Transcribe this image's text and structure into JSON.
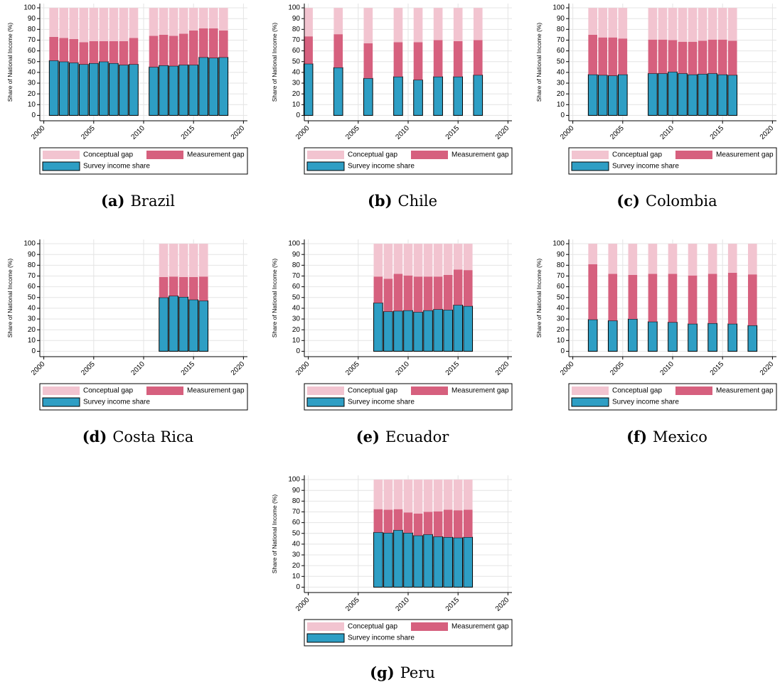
{
  "chart_data": [
    {
      "type": "bar",
      "stacked": true,
      "label": "(a)",
      "title": "Brazil",
      "ylabel": "Share of National Income (%)",
      "x": [
        2001,
        2002,
        2003,
        2004,
        2005,
        2006,
        2007,
        2008,
        2009,
        2011,
        2012,
        2013,
        2014,
        2015,
        2016,
        2017,
        2018
      ],
      "series": [
        {
          "name": "Survey income share",
          "color": "#2e9ec4",
          "edgecolor": "#000000",
          "values": [
            51,
            50,
            49,
            47.5,
            48.5,
            50,
            48.5,
            47,
            47.5,
            45,
            46.5,
            46,
            47,
            47,
            54,
            53.5,
            54
          ]
        },
        {
          "name": "Measurement gap",
          "color": "#d6607e",
          "values": [
            22,
            22,
            22,
            20.5,
            20.5,
            19,
            20.5,
            22,
            24.5,
            29,
            28.5,
            28,
            29,
            32,
            27,
            27.5,
            25
          ]
        },
        {
          "name": "Conceptual gap",
          "color": "#f2c4d0",
          "values": [
            27,
            28,
            29,
            32,
            31,
            31,
            31,
            31,
            28,
            26,
            25,
            26,
            24,
            21,
            19,
            19,
            21
          ]
        }
      ],
      "xlim": [
        1999.6,
        2020.4
      ],
      "xticks": [
        2000,
        2005,
        2010,
        2015,
        2020
      ],
      "ylim": [
        -5,
        104
      ],
      "yticks": [
        0,
        10,
        20,
        30,
        40,
        50,
        60,
        70,
        80,
        90,
        100
      ],
      "grid": true
    },
    {
      "type": "bar",
      "stacked": true,
      "label": "(b)",
      "title": "Chile",
      "ylabel": "Share of National Income (%)",
      "x": [
        2000,
        2003,
        2006,
        2009,
        2011,
        2013,
        2015,
        2017
      ],
      "series": [
        {
          "name": "Survey income share",
          "color": "#2e9ec4",
          "edgecolor": "#000000",
          "values": [
            48,
            44.5,
            34.5,
            36,
            33,
            36,
            36,
            37.5
          ]
        },
        {
          "name": "Measurement gap",
          "color": "#d6607e",
          "values": [
            25.5,
            31,
            32.5,
            32,
            35,
            34,
            33,
            32.5
          ]
        },
        {
          "name": "Conceptual gap",
          "color": "#f2c4d0",
          "values": [
            26.5,
            24.5,
            33,
            32,
            32,
            30,
            31,
            30
          ]
        }
      ],
      "xlim": [
        1999.6,
        2020.4
      ],
      "xticks": [
        2000,
        2005,
        2010,
        2015,
        2020
      ],
      "ylim": [
        -5,
        104
      ],
      "yticks": [
        0,
        10,
        20,
        30,
        40,
        50,
        60,
        70,
        80,
        90,
        100
      ],
      "grid": true
    },
    {
      "type": "bar",
      "stacked": true,
      "label": "(c)",
      "title": "Colombia",
      "ylabel": "Share of National Income (%)",
      "x": [
        2002,
        2003,
        2004,
        2005,
        2008,
        2009,
        2010,
        2011,
        2012,
        2013,
        2014,
        2015,
        2016
      ],
      "series": [
        {
          "name": "Survey income share",
          "color": "#2e9ec4",
          "edgecolor": "#000000",
          "values": [
            38,
            37.5,
            37,
            38,
            39,
            39,
            40.5,
            39,
            38,
            38.5,
            39,
            38,
            37.5
          ]
        },
        {
          "name": "Measurement gap",
          "color": "#d6607e",
          "values": [
            37,
            35,
            35.5,
            33.5,
            31.5,
            31.5,
            29.5,
            29.5,
            30.5,
            31,
            31.5,
            32.5,
            32
          ]
        },
        {
          "name": "Conceptual gap",
          "color": "#f2c4d0",
          "values": [
            25,
            27.5,
            27.5,
            28.5,
            29.5,
            29.5,
            30,
            31.5,
            31.5,
            30.5,
            29.5,
            29.5,
            30.5
          ]
        }
      ],
      "xlim": [
        1999.6,
        2020.4
      ],
      "xticks": [
        2000,
        2005,
        2010,
        2015,
        2020
      ],
      "ylim": [
        -5,
        104
      ],
      "yticks": [
        0,
        10,
        20,
        30,
        40,
        50,
        60,
        70,
        80,
        90,
        100
      ],
      "grid": true
    },
    {
      "type": "bar",
      "stacked": true,
      "label": "(d)",
      "title": "Costa Rica",
      "ylabel": "Share of National Income (%)",
      "x": [
        2012,
        2013,
        2014,
        2015,
        2016
      ],
      "series": [
        {
          "name": "Survey income share",
          "color": "#2e9ec4",
          "edgecolor": "#000000",
          "values": [
            50,
            51.5,
            50.5,
            48,
            47
          ]
        },
        {
          "name": "Measurement gap",
          "color": "#d6607e",
          "values": [
            19,
            18,
            18.5,
            21,
            22.5
          ]
        },
        {
          "name": "Conceptual gap",
          "color": "#f2c4d0",
          "values": [
            31,
            30.5,
            31,
            31,
            30.5
          ]
        }
      ],
      "xlim": [
        1999.6,
        2020.4
      ],
      "xticks": [
        2000,
        2005,
        2010,
        2015,
        2020
      ],
      "ylim": [
        -5,
        104
      ],
      "yticks": [
        0,
        10,
        20,
        30,
        40,
        50,
        60,
        70,
        80,
        90,
        100
      ],
      "grid": true
    },
    {
      "type": "bar",
      "stacked": true,
      "label": "(e)",
      "title": "Ecuador",
      "ylabel": "Share of National Income (%)",
      "x": [
        2007,
        2008,
        2009,
        2010,
        2011,
        2012,
        2013,
        2014,
        2015,
        2016
      ],
      "series": [
        {
          "name": "Survey income share",
          "color": "#2e9ec4",
          "edgecolor": "#000000",
          "values": [
            45,
            37,
            37.5,
            38,
            36.5,
            38,
            39,
            38.5,
            43,
            42
          ]
        },
        {
          "name": "Measurement gap",
          "color": "#d6607e",
          "values": [
            24.5,
            30.5,
            34.5,
            32.5,
            33,
            31.5,
            30.5,
            32.5,
            33,
            33.5
          ]
        },
        {
          "name": "Conceptual gap",
          "color": "#f2c4d0",
          "values": [
            30.5,
            32.5,
            28,
            29.5,
            30.5,
            30.5,
            30.5,
            29,
            24,
            24.5
          ]
        }
      ],
      "xlim": [
        1999.6,
        2020.4
      ],
      "xticks": [
        2000,
        2005,
        2010,
        2015,
        2020
      ],
      "ylim": [
        -5,
        104
      ],
      "yticks": [
        0,
        10,
        20,
        30,
        40,
        50,
        60,
        70,
        80,
        90,
        100
      ],
      "grid": true
    },
    {
      "type": "bar",
      "stacked": true,
      "label": "(f)",
      "title": "Mexico",
      "ylabel": "Share of National Income (%)",
      "x": [
        2002,
        2004,
        2006,
        2008,
        2010,
        2012,
        2014,
        2016,
        2018
      ],
      "series": [
        {
          "name": "Survey income share",
          "color": "#2e9ec4",
          "edgecolor": "#000000",
          "values": [
            29.5,
            28.5,
            30,
            27.5,
            27,
            25.5,
            26,
            25.5,
            24
          ]
        },
        {
          "name": "Measurement gap",
          "color": "#d6607e",
          "values": [
            51.5,
            43.5,
            41,
            44.5,
            45,
            45,
            46,
            47.5,
            47.5
          ]
        },
        {
          "name": "Conceptual gap",
          "color": "#f2c4d0",
          "values": [
            19,
            28,
            29,
            28,
            28,
            29.5,
            28,
            27,
            28.5
          ]
        }
      ],
      "xlim": [
        1999.6,
        2020.4
      ],
      "xticks": [
        2000,
        2005,
        2010,
        2015,
        2020
      ],
      "ylim": [
        -5,
        104
      ],
      "yticks": [
        0,
        10,
        20,
        30,
        40,
        50,
        60,
        70,
        80,
        90,
        100
      ],
      "grid": true
    },
    {
      "type": "bar",
      "stacked": true,
      "label": "(g)",
      "title": "Peru",
      "ylabel": "Share of National Income (%)",
      "x": [
        2007,
        2008,
        2009,
        2010,
        2011,
        2012,
        2013,
        2014,
        2015,
        2016
      ],
      "series": [
        {
          "name": "Survey income share",
          "color": "#2e9ec4",
          "edgecolor": "#000000",
          "values": [
            51,
            50.5,
            53,
            50.5,
            48,
            49,
            47,
            46.5,
            46,
            46.5
          ]
        },
        {
          "name": "Measurement gap",
          "color": "#d6607e",
          "values": [
            21.5,
            21.5,
            19.5,
            19,
            20.5,
            21,
            23.5,
            25.5,
            25.5,
            25.5
          ]
        },
        {
          "name": "Conceptual gap",
          "color": "#f2c4d0",
          "values": [
            27.5,
            28,
            27.5,
            30.5,
            31.5,
            30,
            29.5,
            28,
            28.5,
            28
          ]
        }
      ],
      "xlim": [
        1999.6,
        2020.4
      ],
      "xticks": [
        2000,
        2005,
        2010,
        2015,
        2020
      ],
      "ylim": [
        -5,
        104
      ],
      "yticks": [
        0,
        10,
        20,
        30,
        40,
        50,
        60,
        70,
        80,
        90,
        100
      ],
      "grid": true
    }
  ]
}
